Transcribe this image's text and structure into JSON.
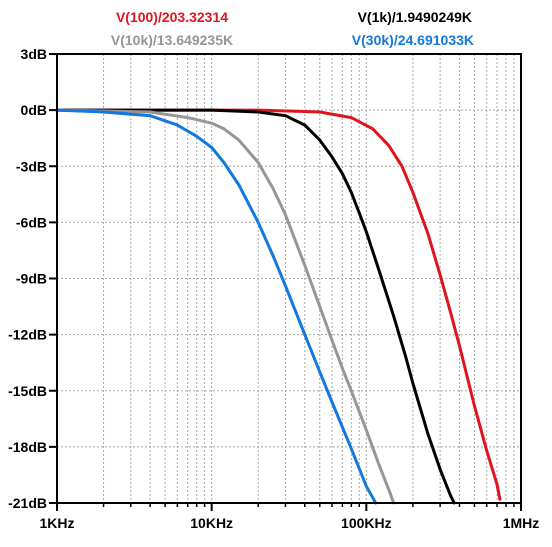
{
  "chart_data": {
    "type": "line",
    "x_scale": "log",
    "xlim": [
      1000,
      1000000
    ],
    "ylim": [
      -21,
      3
    ],
    "x_ticks": [
      {
        "value": 1000,
        "label": "1KHz"
      },
      {
        "value": 10000,
        "label": "10KHz"
      },
      {
        "value": 100000,
        "label": "100KHz"
      },
      {
        "value": 1000000,
        "label": "1MHz"
      }
    ],
    "y_ticks": [
      {
        "value": 3,
        "label": "3dB"
      },
      {
        "value": 0,
        "label": "0dB"
      },
      {
        "value": -3,
        "label": "-3dB"
      },
      {
        "value": -6,
        "label": "-6dB"
      },
      {
        "value": -9,
        "label": "-9dB"
      },
      {
        "value": -12,
        "label": "-12dB"
      },
      {
        "value": -15,
        "label": "-15dB"
      },
      {
        "value": -18,
        "label": "-18dB"
      },
      {
        "value": -21,
        "label": "-21dB"
      }
    ],
    "grid": true,
    "series": [
      {
        "name": "V(100)/203.32314",
        "color": "#e0141e",
        "points": [
          [
            1000,
            0
          ],
          [
            20000,
            0
          ],
          [
            50000,
            -0.1
          ],
          [
            80000,
            -0.4
          ],
          [
            110000,
            -1
          ],
          [
            140000,
            -1.9
          ],
          [
            170000,
            -3
          ],
          [
            200000,
            -4.4
          ],
          [
            250000,
            -6.6
          ],
          [
            300000,
            -8.8
          ],
          [
            350000,
            -10.8
          ],
          [
            400000,
            -12.6
          ],
          [
            450000,
            -14.3
          ],
          [
            500000,
            -15.8
          ],
          [
            600000,
            -18.2
          ],
          [
            700000,
            -20
          ],
          [
            730000,
            -20.8
          ]
        ]
      },
      {
        "name": "V(1k)/1.9490249K",
        "color": "#000000",
        "points": [
          [
            1000,
            0
          ],
          [
            10000,
            0
          ],
          [
            20000,
            -0.1
          ],
          [
            30000,
            -0.3
          ],
          [
            40000,
            -0.8
          ],
          [
            50000,
            -1.6
          ],
          [
            60000,
            -2.5
          ],
          [
            70000,
            -3.4
          ],
          [
            80000,
            -4.4
          ],
          [
            90000,
            -5.5
          ],
          [
            100000,
            -6.5
          ],
          [
            120000,
            -8.5
          ],
          [
            150000,
            -11
          ],
          [
            180000,
            -13.2
          ],
          [
            200000,
            -14.6
          ],
          [
            250000,
            -17.3
          ],
          [
            300000,
            -19.2
          ],
          [
            350000,
            -20.6
          ],
          [
            370000,
            -21
          ]
        ]
      },
      {
        "name": "V(10k)/13.649235K",
        "color": "#969696",
        "points": [
          [
            1000,
            0
          ],
          [
            4000,
            -0.1
          ],
          [
            7000,
            -0.4
          ],
          [
            10000,
            -0.7
          ],
          [
            12000,
            -1
          ],
          [
            15000,
            -1.6
          ],
          [
            20000,
            -2.8
          ],
          [
            25000,
            -4.2
          ],
          [
            30000,
            -5.6
          ],
          [
            40000,
            -8.3
          ],
          [
            50000,
            -10.5
          ],
          [
            60000,
            -12.3
          ],
          [
            70000,
            -13.8
          ],
          [
            80000,
            -15
          ],
          [
            100000,
            -17.1
          ],
          [
            120000,
            -18.9
          ],
          [
            140000,
            -20.3
          ],
          [
            150000,
            -21
          ]
        ]
      },
      {
        "name": "V(30k)/24.691033K",
        "color": "#1478dc",
        "points": [
          [
            1000,
            0
          ],
          [
            2000,
            -0.1
          ],
          [
            4000,
            -0.3
          ],
          [
            6000,
            -0.8
          ],
          [
            8000,
            -1.4
          ],
          [
            10000,
            -2
          ],
          [
            12000,
            -2.8
          ],
          [
            15000,
            -4
          ],
          [
            20000,
            -6
          ],
          [
            25000,
            -7.8
          ],
          [
            30000,
            -9.4
          ],
          [
            40000,
            -12
          ],
          [
            50000,
            -14
          ],
          [
            60000,
            -15.6
          ],
          [
            80000,
            -18.1
          ],
          [
            100000,
            -20.1
          ],
          [
            115000,
            -21
          ]
        ]
      }
    ]
  }
}
